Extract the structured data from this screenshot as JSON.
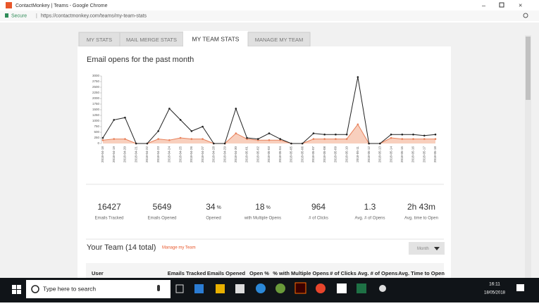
{
  "browser": {
    "window_title": "ContactMonkey | Teams - Google Chrome",
    "secure": "Secure",
    "url": "https://contactmonkey.com/teams/my-team-stats"
  },
  "tabs": [
    "MY STATS",
    "MAIL MERGE STATS",
    "MY TEAM STATS",
    "MANAGE MY TEAM"
  ],
  "chart_data": {
    "type": "line",
    "title": "Email opens for the past month",
    "categories": [
      "2018-04-18",
      "2018-04-19",
      "2018-04-20",
      "2018-04-21",
      "2018-04-22",
      "2018-04-23",
      "2018-04-24",
      "2018-04-25",
      "2018-04-26",
      "2018-04-27",
      "2018-04-28",
      "2018-04-29",
      "2018-04-30",
      "2018-05-01",
      "2018-05-02",
      "2018-05-03",
      "2018-05-04",
      "2018-05-05",
      "2018-05-06",
      "2018-05-07",
      "2018-05-08",
      "2018-05-09",
      "2018-05-10",
      "2018-05-11",
      "2018-05-12",
      "2018-05-13",
      "2018-05-14",
      "2018-05-15",
      "2018-05-16",
      "2018-05-17",
      "2018-05-18"
    ],
    "series": [
      {
        "color": "#222222",
        "values": [
          250,
          1050,
          1150,
          0,
          0,
          550,
          1550,
          1050,
          550,
          750,
          0,
          0,
          1550,
          250,
          200,
          450,
          200,
          0,
          0,
          450,
          400,
          400,
          400,
          2950,
          0,
          0,
          400,
          400,
          400,
          350,
          400
        ]
      },
      {
        "color": "#e8825c",
        "fill": "#f8cfbd",
        "values": [
          150,
          200,
          200,
          0,
          0,
          200,
          150,
          250,
          200,
          200,
          0,
          0,
          450,
          200,
          150,
          150,
          150,
          0,
          0,
          200,
          200,
          200,
          200,
          850,
          0,
          0,
          250,
          200,
          200,
          200,
          200
        ]
      }
    ],
    "ylim": [
      0,
      3000
    ],
    "yticks": [
      0,
      250,
      500,
      750,
      1000,
      1250,
      1500,
      1750,
      2000,
      2250,
      2500,
      2750,
      3000
    ]
  },
  "stats": [
    {
      "value": "16427",
      "label": "Emails Tracked"
    },
    {
      "value": "5649",
      "label": "Emails Opened"
    },
    {
      "value": "34",
      "unit": "%",
      "label": "Opened"
    },
    {
      "value": "18",
      "unit": "%",
      "label": "with Multiple Opens"
    },
    {
      "value": "964",
      "label": "# of Clicks"
    },
    {
      "value": "1.3",
      "label": "Avg. # of Opens"
    },
    {
      "value": "2h 43m",
      "label": "Avg. time to Open"
    }
  ],
  "team": {
    "title": "Your Team (14 total)",
    "link": "Manage my Team",
    "dropdown": "Month",
    "columns": [
      "User",
      "Emails Tracked",
      "Emails Opened",
      "Open %",
      "% with Multiple Opens",
      "# of Clicks",
      "Avg. # of Opens",
      "Avg. Time to Open"
    ]
  },
  "taskbar": {
    "search": "Type here to search",
    "time": "16:11",
    "date": "18/05/2018"
  }
}
